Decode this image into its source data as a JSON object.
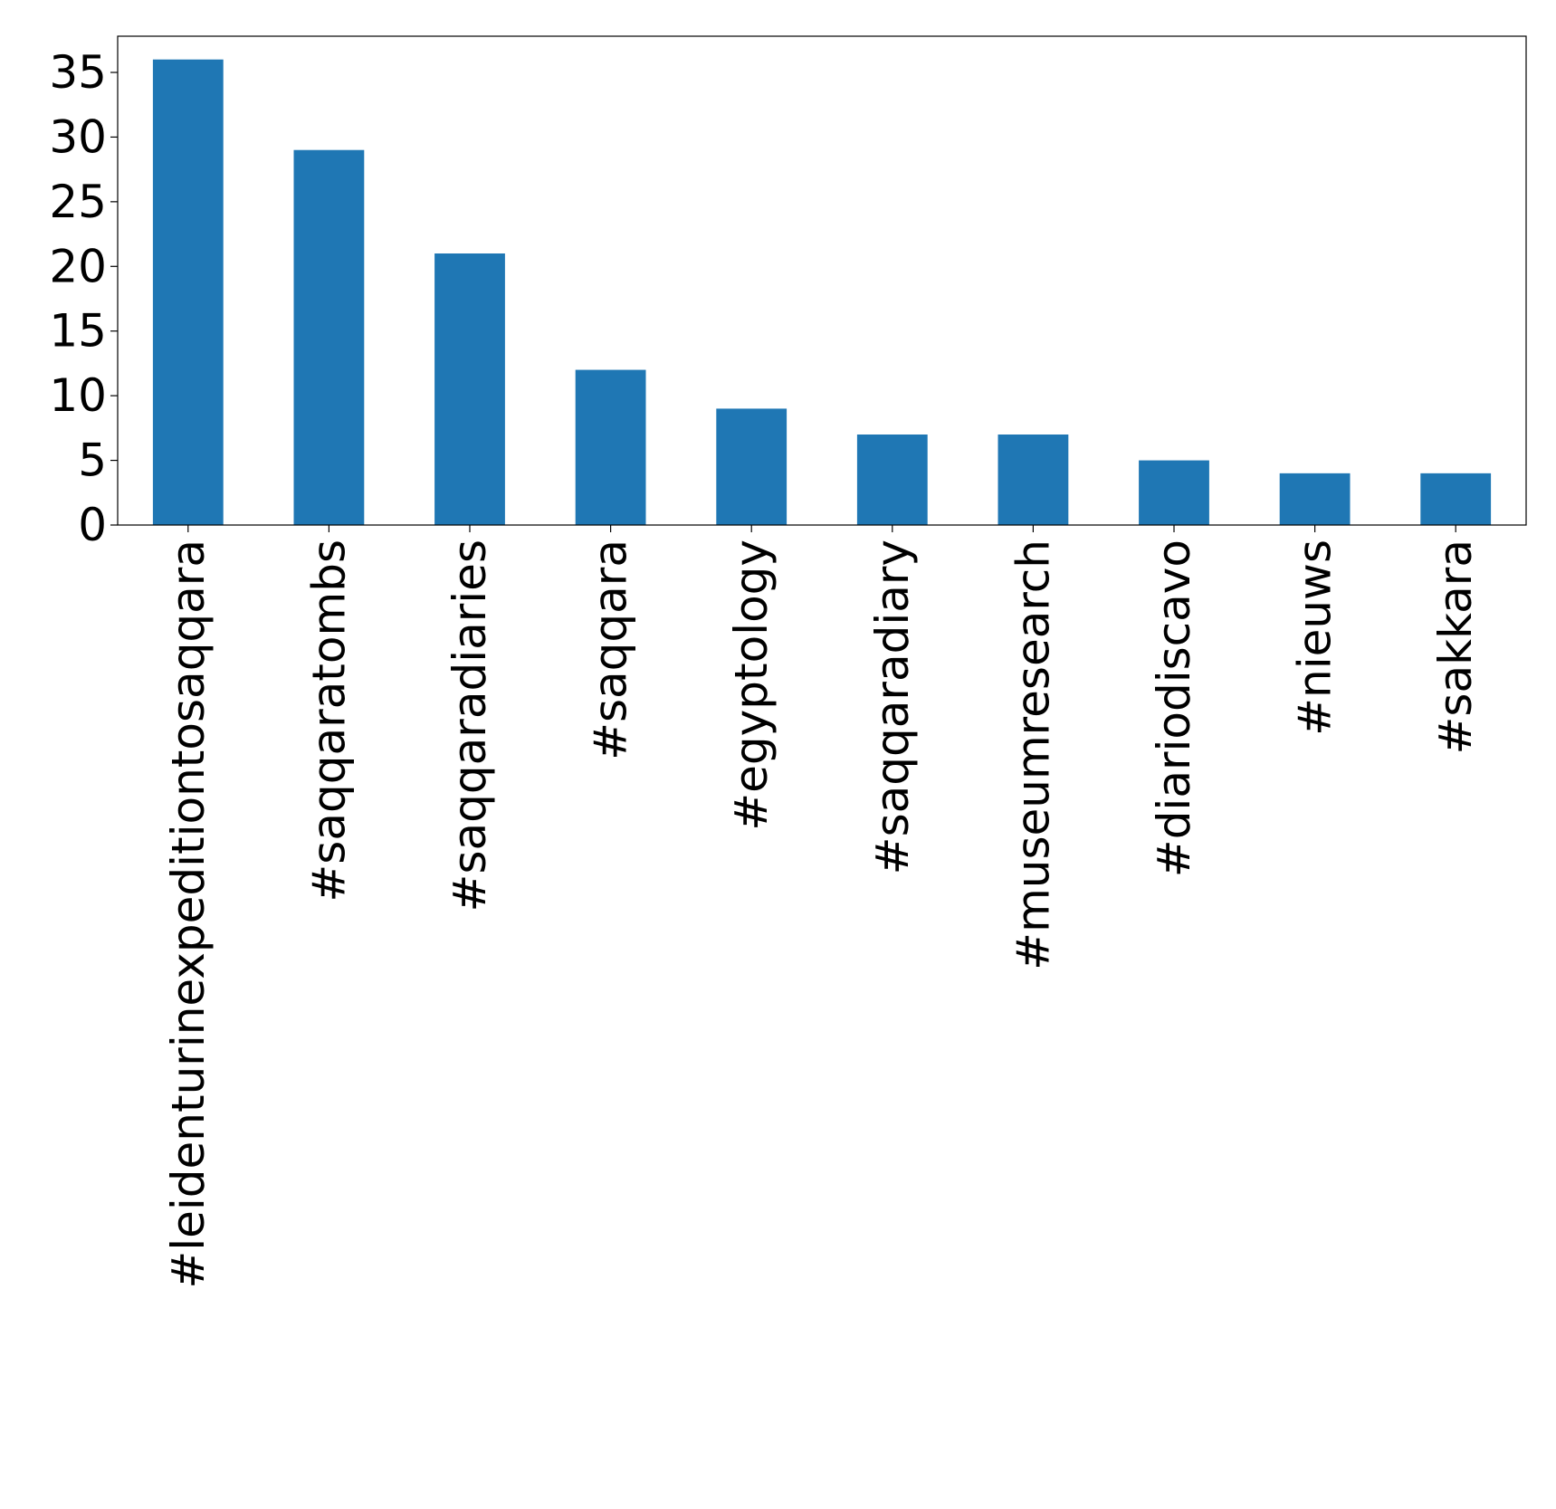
{
  "chart_data": {
    "type": "bar",
    "title": "",
    "xlabel": "",
    "ylabel": "",
    "categories": [
      "#leidenturinexpeditiontosaqqara",
      "#saqqaratombs",
      "#saqqaradiaries",
      "#saqqara",
      "#egyptology",
      "#saqqaradiary",
      "#museumresearch",
      "#diariodiscavo",
      "#nieuws",
      "#sakkara"
    ],
    "values": [
      36,
      29,
      21,
      12,
      9,
      7,
      7,
      5,
      4,
      4
    ],
    "ylim": [
      0,
      37.8
    ],
    "yticks": [
      0,
      5,
      10,
      15,
      20,
      25,
      30,
      35
    ],
    "grid": false,
    "legend": "none",
    "bar_color": "#1f77b4"
  }
}
